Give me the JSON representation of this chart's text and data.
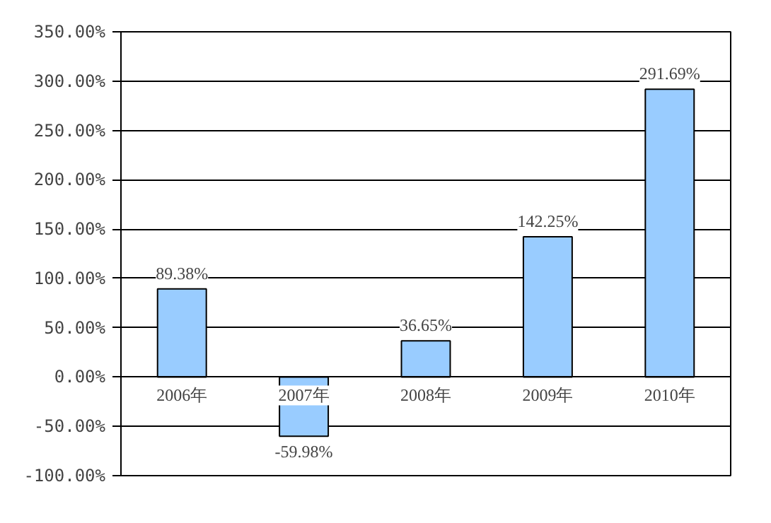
{
  "chart_data": {
    "type": "bar",
    "categories": [
      "2006年",
      "2007年",
      "2008年",
      "2009年",
      "2010年"
    ],
    "values": [
      89.38,
      -59.98,
      36.65,
      142.25,
      291.69
    ],
    "value_labels": [
      "89.38%",
      "-59.98%",
      "36.65%",
      "142.25%",
      "291.69%"
    ],
    "color": "#99ccff",
    "ylim": [
      -100,
      350
    ],
    "yticks": [
      {
        "value": -100,
        "label": "-100.00%"
      },
      {
        "value": -50,
        "label": "-50.00%"
      },
      {
        "value": 0,
        "label": "0.00%"
      },
      {
        "value": 50,
        "label": "50.00%"
      },
      {
        "value": 100,
        "label": "100.00%"
      },
      {
        "value": 150,
        "label": "150.00%"
      },
      {
        "value": 200,
        "label": "200.00%"
      },
      {
        "value": 250,
        "label": "250.00%"
      },
      {
        "value": 300,
        "label": "300.00%"
      },
      {
        "value": 350,
        "label": "350.00%"
      }
    ],
    "grid": "y"
  }
}
